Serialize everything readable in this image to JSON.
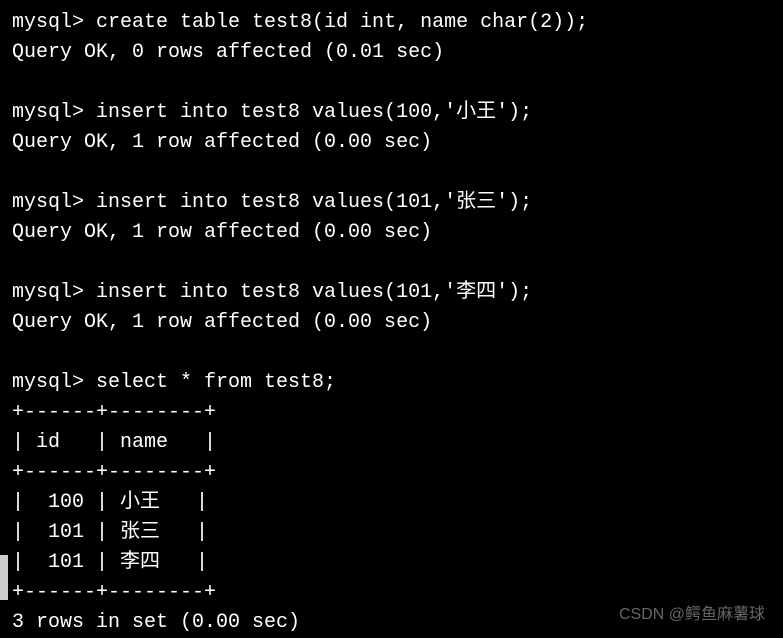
{
  "colors": {
    "background": "#000000",
    "text": "#ffffff",
    "watermark": "#888888"
  },
  "typography": {
    "fontFamily": "Consolas, Courier New, monospace",
    "fontSize": 20,
    "lineHeight": 1.5
  },
  "prompt": "mysql> ",
  "commands": [
    {
      "input": "create table test8(id int, name char(2));",
      "output": "Query OK, 0 rows affected (0.01 sec)"
    },
    {
      "input": "insert into test8 values(100,'小王');",
      "output": "Query OK, 1 row affected (0.00 sec)"
    },
    {
      "input": "insert into test8 values(101,'张三');",
      "output": "Query OK, 1 row affected (0.00 sec)"
    },
    {
      "input": "insert into test8 values(101,'李四');",
      "output": "Query OK, 1 row affected (0.00 sec)"
    }
  ],
  "select": {
    "input": "select * from test8;",
    "table": {
      "border": "+------+--------+",
      "header": "| id   | name   |",
      "rows": [
        "|  100 | 小王   |",
        "|  101 | 张三   |",
        "|  101 | 李四   |"
      ]
    },
    "footer": "3 rows in set (0.00 sec)"
  },
  "table_data": {
    "columns": [
      "id",
      "name"
    ],
    "rows": [
      [
        100,
        "小王"
      ],
      [
        101,
        "张三"
      ],
      [
        101,
        "李四"
      ]
    ],
    "row_count": 3,
    "elapsed_sec": 0.0
  },
  "watermark": "CSDN @鳄鱼麻薯球"
}
